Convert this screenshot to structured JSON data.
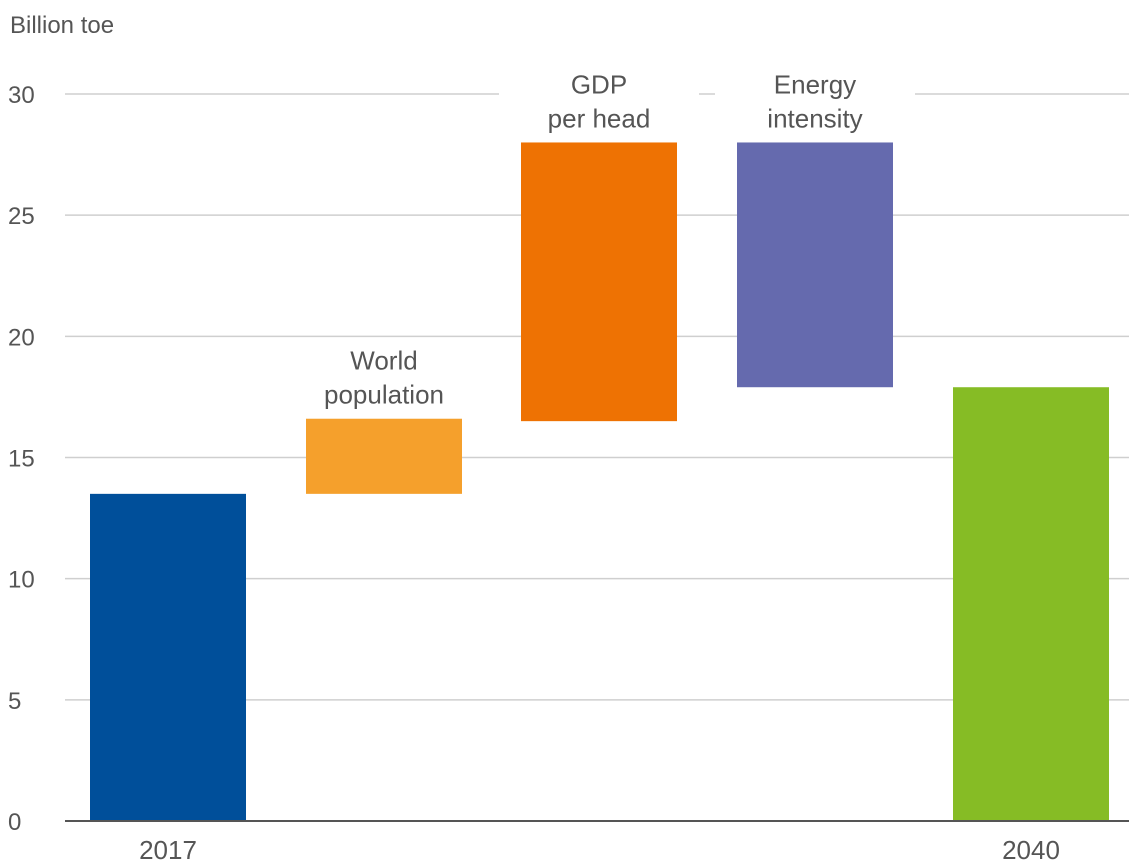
{
  "chart_data": {
    "type": "bar",
    "subtype": "waterfall",
    "ylabel": "Billion toe",
    "ylim": [
      0,
      30
    ],
    "yticks": [
      0,
      5,
      10,
      15,
      20,
      25,
      30
    ],
    "grid": true,
    "bars": [
      {
        "label": [
          "2017"
        ],
        "label_position": "below",
        "start": 0,
        "end": 13.5,
        "color": "#004f9a"
      },
      {
        "label": [
          "World",
          "population"
        ],
        "label_position": "above",
        "start": 13.5,
        "end": 16.6,
        "color": "#f5a02c"
      },
      {
        "label": [
          "GDP",
          "per head"
        ],
        "label_position": "above",
        "start": 16.5,
        "end": 28.0,
        "color": "#ee7203"
      },
      {
        "label": [
          "Energy",
          "intensity"
        ],
        "label_position": "above",
        "start": 17.9,
        "end": 28.0,
        "color": "#656aae"
      },
      {
        "label": [
          "2040"
        ],
        "label_position": "below",
        "start": 0,
        "end": 17.9,
        "color": "#86bc25"
      }
    ]
  }
}
